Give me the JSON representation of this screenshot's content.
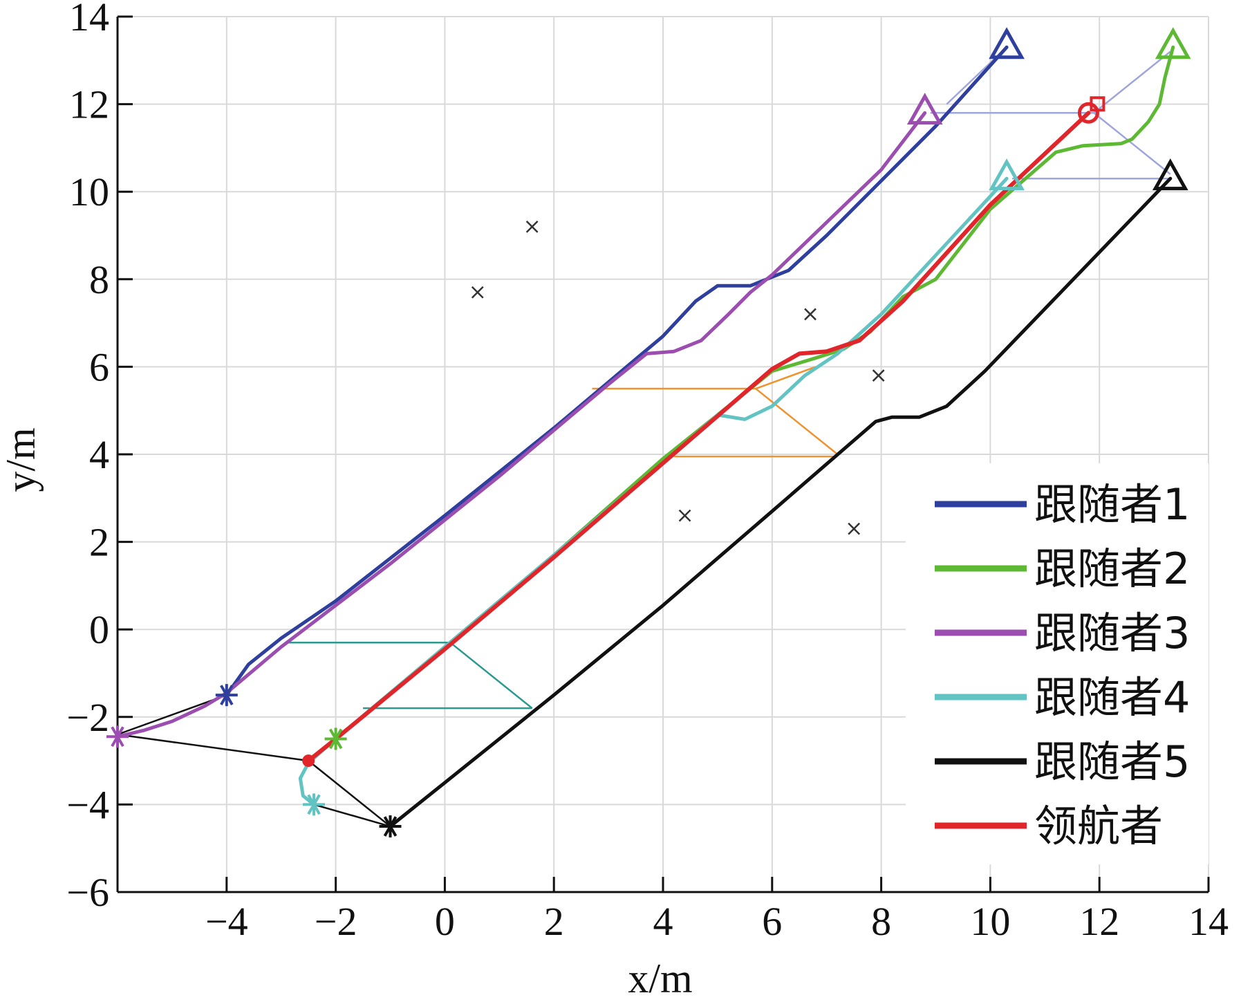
{
  "chart_data": {
    "type": "line",
    "xlabel": "x/m",
    "ylabel": "y/m",
    "xlim": [
      -6,
      14
    ],
    "ylim": [
      -6,
      14
    ],
    "xticks": [
      -4,
      -2,
      0,
      2,
      4,
      6,
      8,
      10,
      12,
      14
    ],
    "yticks": [
      -6,
      -4,
      -2,
      0,
      2,
      4,
      6,
      8,
      10,
      12,
      14
    ],
    "grid": true,
    "legend_position": "bottom-right",
    "series": [
      {
        "name": "跟随者1",
        "color": "#2e3f9e",
        "start_marker": "star",
        "end_marker": "triangle",
        "points": [
          [
            -4,
            -1.5
          ],
          [
            -3.6,
            -0.8
          ],
          [
            -3,
            -0.2
          ],
          [
            -2,
            0.65
          ],
          [
            0,
            2.6
          ],
          [
            2,
            4.6
          ],
          [
            4,
            6.7
          ],
          [
            4.6,
            7.5
          ],
          [
            5,
            7.85
          ],
          [
            5.6,
            7.85
          ],
          [
            6.3,
            8.2
          ],
          [
            7,
            9
          ],
          [
            9,
            11.5
          ],
          [
            10.3,
            13.3
          ]
        ]
      },
      {
        "name": "跟随者2",
        "color": "#5db833",
        "start_marker": "star",
        "end_marker": "triangle",
        "points": [
          [
            -2,
            -2.5
          ],
          [
            0,
            -0.4
          ],
          [
            2,
            1.7
          ],
          [
            4,
            3.9
          ],
          [
            6,
            5.9
          ],
          [
            6.8,
            6.2
          ],
          [
            7.3,
            6.4
          ],
          [
            7.8,
            6.8
          ],
          [
            8.4,
            7.6
          ],
          [
            9,
            8
          ],
          [
            10,
            9.6
          ],
          [
            11.2,
            10.9
          ],
          [
            11.7,
            11.05
          ],
          [
            12.4,
            11.1
          ],
          [
            12.6,
            11.2
          ],
          [
            12.9,
            11.6
          ],
          [
            13.1,
            12
          ],
          [
            13.2,
            12.6
          ],
          [
            13.35,
            13.3
          ]
        ]
      },
      {
        "name": "跟随者3",
        "color": "#9b4db0",
        "start_marker": "star",
        "end_marker": "triangle",
        "points": [
          [
            -6,
            -2.45
          ],
          [
            -5.5,
            -2.3
          ],
          [
            -5,
            -2.1
          ],
          [
            -4.4,
            -1.75
          ],
          [
            -4,
            -1.45
          ],
          [
            -3,
            -0.4
          ],
          [
            -1,
            1.5
          ],
          [
            1,
            3.5
          ],
          [
            3,
            5.6
          ],
          [
            3.7,
            6.3
          ],
          [
            4.2,
            6.35
          ],
          [
            4.7,
            6.6
          ],
          [
            5.2,
            7.2
          ],
          [
            5.6,
            7.7
          ],
          [
            6,
            8.1
          ],
          [
            7,
            9.3
          ],
          [
            8,
            10.5
          ],
          [
            8.8,
            11.8
          ]
        ]
      },
      {
        "name": "跟随者4",
        "color": "#62c3c3",
        "start_marker": "star",
        "end_marker": "triangle",
        "points": [
          [
            -2.4,
            -4
          ],
          [
            -2.6,
            -3.8
          ],
          [
            -2.65,
            -3.4
          ],
          [
            -2.5,
            -3.05
          ],
          [
            -2,
            -2.5
          ],
          [
            0,
            -0.4
          ],
          [
            2,
            1.7
          ],
          [
            4,
            3.8
          ],
          [
            5,
            4.9
          ],
          [
            5.5,
            4.8
          ],
          [
            6,
            5.1
          ],
          [
            6.6,
            5.8
          ],
          [
            7.2,
            6.3
          ],
          [
            8,
            7.2
          ],
          [
            10.3,
            10.3
          ]
        ]
      },
      {
        "name": "跟随者5",
        "color": "#111111",
        "start_marker": "star",
        "end_marker": "triangle",
        "points": [
          [
            -1,
            -4.5
          ],
          [
            0,
            -3.5
          ],
          [
            2,
            -1.5
          ],
          [
            4,
            0.55
          ],
          [
            6,
            2.7
          ],
          [
            7.9,
            4.75
          ],
          [
            8.2,
            4.85
          ],
          [
            8.7,
            4.85
          ],
          [
            9.2,
            5.1
          ],
          [
            9.9,
            5.9
          ],
          [
            13.3,
            10.3
          ]
        ]
      },
      {
        "name": "领航者",
        "color": "#e0262b",
        "start_marker": "circle",
        "end_marker": "circle",
        "points": [
          [
            -2.5,
            -3
          ],
          [
            -2,
            -2.5
          ],
          [
            0,
            -0.45
          ],
          [
            2,
            1.65
          ],
          [
            4,
            3.8
          ],
          [
            6,
            5.95
          ],
          [
            6.5,
            6.3
          ],
          [
            7,
            6.35
          ],
          [
            7.6,
            6.6
          ],
          [
            8.4,
            7.5
          ],
          [
            10,
            9.7
          ],
          [
            11.8,
            11.8
          ]
        ]
      }
    ],
    "formation_links": [
      {
        "color": "#111111",
        "segments": [
          [
            [
              -6,
              -2.4
            ],
            [
              -4,
              -1.5
            ]
          ],
          [
            [
              -6,
              -2.4
            ],
            [
              -2.5,
              -3
            ]
          ],
          [
            [
              -2.5,
              -3
            ],
            [
              -1,
              -4.5
            ]
          ],
          [
            [
              -2.4,
              -4
            ],
            [
              -1,
              -4.5
            ]
          ]
        ]
      },
      {
        "color": "#2a9a8e",
        "segments": [
          [
            [
              -2.9,
              -0.3
            ],
            [
              0.1,
              -0.3
            ]
          ],
          [
            [
              0.1,
              -0.3
            ],
            [
              1.6,
              -1.8
            ]
          ],
          [
            [
              -1.5,
              -1.8
            ],
            [
              1.6,
              -1.8
            ]
          ]
        ]
      },
      {
        "color": "#f0922e",
        "segments": [
          [
            [
              2.7,
              5.5
            ],
            [
              5.7,
              5.5
            ]
          ],
          [
            [
              5.7,
              5.5
            ],
            [
              7.2,
              4
            ]
          ],
          [
            [
              4.2,
              3.95
            ],
            [
              7.2,
              3.95
            ]
          ],
          [
            [
              5.7,
              5.5
            ],
            [
              6.8,
              6
            ]
          ]
        ]
      },
      {
        "color": "#9fa6dd",
        "segments": [
          [
            [
              8.9,
              11.8
            ],
            [
              11.9,
              11.8
            ]
          ],
          [
            [
              11.9,
              11.8
            ],
            [
              13.3,
              13.2
            ]
          ],
          [
            [
              11.9,
              11.8
            ],
            [
              13.3,
              10.4
            ]
          ],
          [
            [
              10.4,
              10.3
            ],
            [
              13.3,
              10.3
            ]
          ],
          [
            [
              9.2,
              12
            ],
            [
              10.3,
              13.3
            ]
          ]
        ]
      }
    ],
    "obstacles": [
      [
        0.6,
        7.7
      ],
      [
        1.6,
        9.2
      ],
      [
        4.4,
        2.6
      ],
      [
        6.7,
        7.2
      ],
      [
        7.95,
        5.8
      ],
      [
        7.5,
        2.3
      ]
    ]
  }
}
